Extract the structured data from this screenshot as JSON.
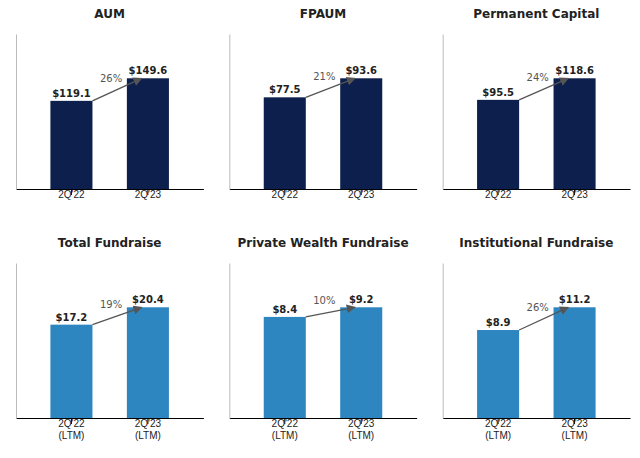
{
  "chart_data": [
    {
      "type": "bar",
      "title": "AUM",
      "categories": [
        "2Q'22",
        "2Q'23"
      ],
      "values": [
        119.1,
        149.6
      ],
      "value_labels": [
        "$119.1",
        "$149.6"
      ],
      "data_labels": true,
      "color": "#0d1f4c",
      "ylim": [
        0,
        209.44
      ],
      "tick_labels": "x",
      "grid": false,
      "annotations": [
        "26%"
      ]
    },
    {
      "type": "bar",
      "title": "FPAUM",
      "categories": [
        "2Q'22",
        "2Q'23"
      ],
      "values": [
        77.5,
        93.6
      ],
      "value_labels": [
        "$77.5",
        "$93.6"
      ],
      "data_labels": true,
      "color": "#0d1f4c",
      "ylim": [
        0,
        131.04
      ],
      "tick_labels": "x",
      "grid": false,
      "annotations": [
        "21%"
      ]
    },
    {
      "type": "bar",
      "title": "Permanent Capital",
      "categories": [
        "2Q'22",
        "2Q'23"
      ],
      "values": [
        95.5,
        118.6
      ],
      "value_labels": [
        "$95.5",
        "$118.6"
      ],
      "data_labels": true,
      "color": "#0d1f4c",
      "ylim": [
        0,
        166.04
      ],
      "tick_labels": "x",
      "grid": false,
      "annotations": [
        "24%"
      ]
    },
    {
      "type": "bar",
      "title": "Total Fundraise",
      "categories": [
        "2Q'22\n(LTM)",
        "2Q'23\n(LTM)"
      ],
      "values": [
        17.2,
        20.4
      ],
      "value_labels": [
        "$17.2",
        "$20.4"
      ],
      "data_labels": true,
      "color": "#2e86c1",
      "ylim": [
        0,
        28.56
      ],
      "tick_labels": "x",
      "grid": false,
      "annotations": [
        "19%"
      ]
    },
    {
      "type": "bar",
      "title": "Private Wealth Fundraise",
      "categories": [
        "2Q'22\n(LTM)",
        "2Q'23\n(LTM)"
      ],
      "values": [
        8.4,
        9.2
      ],
      "value_labels": [
        "$8.4",
        "$9.2"
      ],
      "data_labels": true,
      "color": "#2e86c1",
      "ylim": [
        0,
        12.88
      ],
      "tick_labels": "x",
      "grid": false,
      "annotations": [
        "10%"
      ]
    },
    {
      "type": "bar",
      "title": "Institutional Fundraise",
      "categories": [
        "2Q'22\n(LTM)",
        "2Q'23\n(LTM)"
      ],
      "values": [
        8.9,
        11.2
      ],
      "value_labels": [
        "$8.9",
        "$11.2"
      ],
      "data_labels": true,
      "color": "#2e86c1",
      "ylim": [
        0,
        15.68
      ],
      "tick_labels": "x",
      "grid": false,
      "annotations": [
        "26%"
      ]
    }
  ]
}
